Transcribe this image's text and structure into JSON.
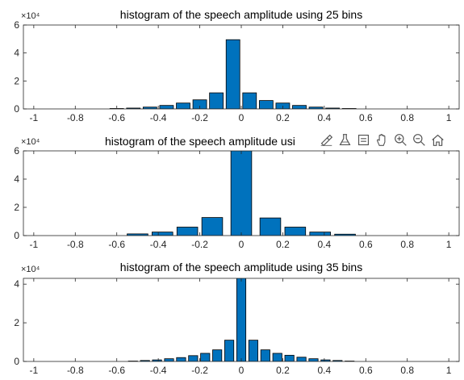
{
  "chart_data": [
    {
      "type": "bar",
      "title": "histogram of the speech amplitude using 25 bins",
      "xlabel": "",
      "ylabel": "",
      "ylim": [
        0,
        6
      ],
      "xlim": [
        -1.05,
        1.05
      ],
      "y_exponent": "×10⁴",
      "x_ticks": [
        "-1",
        "-0.8",
        "-0.6",
        "-0.4",
        "-0.2",
        "0",
        "0.2",
        "0.4",
        "0.6",
        "0.8",
        "1"
      ],
      "y_ticks": [
        "0",
        "2",
        "4",
        "6"
      ],
      "bar_width": 0.066,
      "x": [
        -0.6,
        -0.52,
        -0.44,
        -0.36,
        -0.28,
        -0.2,
        -0.12,
        -0.04,
        0.04,
        0.12,
        0.2,
        0.28,
        0.36,
        0.44,
        0.52
      ],
      "values": [
        0.03,
        0.06,
        0.13,
        0.25,
        0.42,
        0.65,
        1.15,
        4.95,
        1.15,
        0.6,
        0.42,
        0.25,
        0.13,
        0.06,
        0.03
      ],
      "grid": false
    },
    {
      "type": "bar",
      "title": "histogram of the speech amplitude usi",
      "xlabel": "",
      "ylabel": "",
      "ylim": [
        0,
        6
      ],
      "xlim": [
        -1.05,
        1.05
      ],
      "y_exponent": "×10⁴",
      "x_ticks": [
        "-1",
        "-0.8",
        "-0.6",
        "-0.4",
        "-0.2",
        "0",
        "0.2",
        "0.4",
        "0.6",
        "0.8",
        "1"
      ],
      "y_ticks": [
        "0",
        "2",
        "4",
        "6"
      ],
      "bar_width": 0.1,
      "x": [
        -0.5,
        -0.38,
        -0.26,
        -0.14,
        0,
        0.14,
        0.26,
        0.38,
        0.5
      ],
      "values": [
        0.12,
        0.25,
        0.6,
        1.28,
        6.5,
        1.25,
        0.6,
        0.25,
        0.1
      ],
      "grid": false
    },
    {
      "type": "bar",
      "title": "histogram of the speech amplitude using 35 bins",
      "xlabel": "",
      "ylabel": "",
      "ylim": [
        0,
        4.3
      ],
      "xlim": [
        -1.05,
        1.05
      ],
      "y_exponent": "×10⁴",
      "x_ticks": [
        "-1",
        "-0.8",
        "-0.6",
        "-0.4",
        "-0.2",
        "0",
        "0.2",
        "0.4",
        "0.6",
        "0.8",
        "1"
      ],
      "y_ticks": [
        "0",
        "2",
        "4"
      ],
      "bar_width": 0.044,
      "x": [
        -0.522,
        -0.464,
        -0.406,
        -0.348,
        -0.29,
        -0.232,
        -0.174,
        -0.116,
        -0.058,
        0,
        0.058,
        0.116,
        0.174,
        0.232,
        0.29,
        0.348,
        0.406,
        0.464,
        0.522
      ],
      "values": [
        0.02,
        0.05,
        0.08,
        0.14,
        0.2,
        0.3,
        0.42,
        0.6,
        1.1,
        4.6,
        1.1,
        0.6,
        0.42,
        0.32,
        0.22,
        0.14,
        0.08,
        0.05,
        0.02
      ],
      "grid": false
    }
  ],
  "colors": {
    "bar_fill": "#0072BD",
    "bar_edge": "#000000",
    "axis": "#262626"
  },
  "toolbar": {
    "icons": [
      "brush-icon",
      "data-tip-icon",
      "legend-icon",
      "pan-icon",
      "zoom-in-icon",
      "zoom-out-icon",
      "home-icon"
    ]
  }
}
